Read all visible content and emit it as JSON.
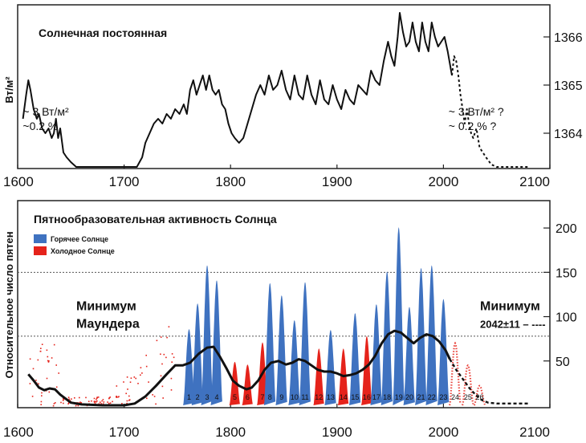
{
  "chart_data": [
    {
      "type": "line",
      "title": "Солнечная постоянная",
      "ylabel": "Вт/м²",
      "xlim": [
        1600,
        2100
      ],
      "ylim": [
        1363.3,
        1366.6
      ],
      "x_ticks": [
        "1600",
        "1700",
        "1800",
        "1900",
        "2000",
        "2100"
      ],
      "y_ticks": [
        "1364",
        "1365",
        "1366"
      ],
      "annotations": [
        {
          "text": "~ 3 Вт/м²",
          "x": 1635,
          "y": 1364.45
        },
        {
          "text": "~0.2 %",
          "x": 1635,
          "y": 1364.15
        },
        {
          "text": "~ 3 Вт/м² ?",
          "x": 2035,
          "y": 1364.45
        },
        {
          "text": "~ 0.2 % ?",
          "x": 2035,
          "y": 1364.15
        }
      ],
      "series": [
        {
          "style": "solid",
          "points": [
            [
              1605,
              1364.3
            ],
            [
              1608,
              1364.8
            ],
            [
              1610,
              1365.1
            ],
            [
              1612,
              1364.9
            ],
            [
              1615,
              1364.5
            ],
            [
              1618,
              1364.3
            ],
            [
              1620,
              1364.4
            ],
            [
              1623,
              1364.1
            ],
            [
              1626,
              1364.0
            ],
            [
              1629,
              1364.1
            ],
            [
              1632,
              1363.9
            ],
            [
              1634,
              1364.0
            ],
            [
              1636,
              1364.3
            ],
            [
              1638,
              1363.9
            ],
            [
              1640,
              1364.1
            ],
            [
              1643,
              1363.6
            ],
            [
              1646,
              1363.5
            ],
            [
              1650,
              1363.4
            ],
            [
              1655,
              1363.3
            ],
            [
              1665,
              1363.3
            ],
            [
              1680,
              1363.3
            ],
            [
              1700,
              1363.3
            ],
            [
              1712,
              1363.3
            ],
            [
              1717,
              1363.5
            ],
            [
              1720,
              1363.8
            ],
            [
              1724,
              1364.0
            ],
            [
              1728,
              1364.2
            ],
            [
              1732,
              1364.3
            ],
            [
              1736,
              1364.2
            ],
            [
              1740,
              1364.4
            ],
            [
              1744,
              1364.3
            ],
            [
              1748,
              1364.5
            ],
            [
              1752,
              1364.4
            ],
            [
              1756,
              1364.6
            ],
            [
              1759,
              1364.4
            ],
            [
              1762,
              1364.9
            ],
            [
              1765,
              1365.1
            ],
            [
              1768,
              1364.8
            ],
            [
              1771,
              1365.0
            ],
            [
              1774,
              1365.2
            ],
            [
              1777,
              1364.9
            ],
            [
              1780,
              1365.2
            ],
            [
              1783,
              1364.9
            ],
            [
              1786,
              1364.8
            ],
            [
              1789,
              1364.9
            ],
            [
              1792,
              1364.6
            ],
            [
              1795,
              1364.5
            ],
            [
              1798,
              1364.2
            ],
            [
              1801,
              1364.0
            ],
            [
              1804,
              1363.9
            ],
            [
              1808,
              1363.8
            ],
            [
              1812,
              1363.9
            ],
            [
              1816,
              1364.2
            ],
            [
              1820,
              1364.5
            ],
            [
              1824,
              1364.8
            ],
            [
              1828,
              1365.0
            ],
            [
              1832,
              1364.8
            ],
            [
              1836,
              1365.2
            ],
            [
              1840,
              1364.9
            ],
            [
              1844,
              1365.0
            ],
            [
              1848,
              1365.3
            ],
            [
              1852,
              1364.9
            ],
            [
              1856,
              1364.7
            ],
            [
              1860,
              1365.2
            ],
            [
              1864,
              1364.8
            ],
            [
              1868,
              1364.7
            ],
            [
              1872,
              1365.2
            ],
            [
              1876,
              1364.8
            ],
            [
              1880,
              1364.6
            ],
            [
              1884,
              1365.1
            ],
            [
              1888,
              1364.7
            ],
            [
              1892,
              1364.6
            ],
            [
              1896,
              1365.0
            ],
            [
              1900,
              1364.7
            ],
            [
              1904,
              1364.5
            ],
            [
              1908,
              1364.9
            ],
            [
              1912,
              1364.7
            ],
            [
              1916,
              1364.6
            ],
            [
              1920,
              1365.0
            ],
            [
              1924,
              1364.9
            ],
            [
              1928,
              1364.8
            ],
            [
              1932,
              1365.3
            ],
            [
              1936,
              1365.1
            ],
            [
              1940,
              1365.0
            ],
            [
              1944,
              1365.5
            ],
            [
              1948,
              1365.9
            ],
            [
              1951,
              1365.6
            ],
            [
              1954,
              1365.4
            ],
            [
              1957,
              1366.0
            ],
            [
              1959,
              1366.5
            ],
            [
              1962,
              1366.1
            ],
            [
              1965,
              1365.8
            ],
            [
              1968,
              1365.9
            ],
            [
              1971,
              1366.3
            ],
            [
              1974,
              1365.9
            ],
            [
              1977,
              1365.7
            ],
            [
              1980,
              1366.3
            ],
            [
              1983,
              1365.9
            ],
            [
              1986,
              1365.7
            ],
            [
              1989,
              1366.3
            ],
            [
              1992,
              1366.0
            ],
            [
              1995,
              1365.8
            ],
            [
              1998,
              1365.9
            ],
            [
              2001,
              1366.0
            ],
            [
              2004,
              1365.7
            ],
            [
              2008,
              1365.2
            ]
          ]
        },
        {
          "style": "dashed",
          "points": [
            [
              2008,
              1365.2
            ],
            [
              2010,
              1365.6
            ],
            [
              2012,
              1365.5
            ],
            [
              2014,
              1365.2
            ],
            [
              2016,
              1364.8
            ],
            [
              2018,
              1364.5
            ],
            [
              2020,
              1364.2
            ],
            [
              2022,
              1364.5
            ],
            [
              2024,
              1364.2
            ],
            [
              2026,
              1364.0
            ],
            [
              2028,
              1363.9
            ],
            [
              2031,
              1364.1
            ],
            [
              2034,
              1363.7
            ],
            [
              2037,
              1363.6
            ],
            [
              2040,
              1363.5
            ],
            [
              2045,
              1363.35
            ],
            [
              2050,
              1363.3
            ],
            [
              2060,
              1363.3
            ],
            [
              2080,
              1363.3
            ]
          ]
        }
      ]
    },
    {
      "type": "bar",
      "title": "Пятнообразовательная активность Солнца",
      "ylabel": "Относительное число пятен",
      "xlim": [
        1600,
        2100
      ],
      "ylim": [
        0,
        220
      ],
      "x_ticks": [
        "1600",
        "1700",
        "1800",
        "1900",
        "2000",
        "2100"
      ],
      "y_ticks": [
        "50",
        "100",
        "150",
        "200"
      ],
      "gridlines": [
        150,
        78
      ],
      "legend": {
        "position": "top-left",
        "entries": [
          {
            "name": "Горячее Солнце",
            "color": "#3f72c0"
          },
          {
            "name": "Холодное Солнце",
            "color": "#e5231b"
          }
        ]
      },
      "annotations": [
        {
          "text": "Минимум",
          "x": 1665,
          "y": 112,
          "color": "#e5231b"
        },
        {
          "text": "Маундера",
          "x": 1665,
          "y": 92,
          "color": "#e5231b"
        },
        {
          "text": "Минимум",
          "x": 2050,
          "y": 112,
          "color": "#e5231b"
        },
        {
          "text": "2042±11 – ----",
          "x": 2050,
          "y": 92,
          "color": "#e5231b"
        }
      ],
      "hot_color": "#3f72c0",
      "cold_color": "#e5231b",
      "cycles": [
        {
          "label": "1",
          "year": 1761,
          "peak": 86,
          "cold": false
        },
        {
          "label": "2",
          "year": 1769,
          "peak": 115,
          "cold": false
        },
        {
          "label": "3",
          "year": 1778,
          "peak": 158,
          "cold": false
        },
        {
          "label": "4",
          "year": 1787,
          "peak": 141,
          "cold": false
        },
        {
          "label": "5",
          "year": 1804,
          "peak": 49,
          "cold": true
        },
        {
          "label": "6",
          "year": 1816,
          "peak": 46,
          "cold": true
        },
        {
          "label": "7",
          "year": 1830,
          "peak": 71,
          "cold": true
        },
        {
          "label": "8",
          "year": 1837,
          "peak": 138,
          "cold": false
        },
        {
          "label": "9",
          "year": 1848,
          "peak": 124,
          "cold": false
        },
        {
          "label": "10",
          "year": 1860,
          "peak": 96,
          "cold": false
        },
        {
          "label": "11",
          "year": 1870,
          "peak": 139,
          "cold": false
        },
        {
          "label": "12",
          "year": 1883,
          "peak": 64,
          "cold": true
        },
        {
          "label": "13",
          "year": 1894,
          "peak": 85,
          "cold": false
        },
        {
          "label": "14",
          "year": 1906,
          "peak": 64,
          "cold": true
        },
        {
          "label": "15",
          "year": 1917,
          "peak": 104,
          "cold": false
        },
        {
          "label": "16",
          "year": 1928,
          "peak": 78,
          "cold": true
        },
        {
          "label": "17",
          "year": 1937,
          "peak": 114,
          "cold": false
        },
        {
          "label": "18",
          "year": 1947,
          "peak": 151,
          "cold": false
        },
        {
          "label": "19",
          "year": 1958,
          "peak": 201,
          "cold": false
        },
        {
          "label": "20",
          "year": 1968,
          "peak": 111,
          "cold": false
        },
        {
          "label": "21",
          "year": 1979,
          "peak": 155,
          "cold": false
        },
        {
          "label": "22",
          "year": 1989,
          "peak": 158,
          "cold": false
        },
        {
          "label": "23",
          "year": 2000,
          "peak": 120,
          "cold": false
        },
        {
          "label": "24",
          "year": 2011,
          "peak": 70,
          "cold": true
        },
        {
          "label": "25",
          "year": 2023,
          "peak": 45,
          "cold": true
        },
        {
          "label": "26",
          "year": 2034,
          "peak": 22,
          "cold": true
        }
      ],
      "smoothed_series": [
        [
          1610,
          35
        ],
        [
          1615,
          28
        ],
        [
          1620,
          20
        ],
        [
          1625,
          17
        ],
        [
          1630,
          19
        ],
        [
          1635,
          18
        ],
        [
          1640,
          12
        ],
        [
          1650,
          3
        ],
        [
          1660,
          1
        ],
        [
          1680,
          0
        ],
        [
          1700,
          0
        ],
        [
          1710,
          2
        ],
        [
          1720,
          10
        ],
        [
          1730,
          22
        ],
        [
          1740,
          35
        ],
        [
          1748,
          45
        ],
        [
          1755,
          45
        ],
        [
          1762,
          48
        ],
        [
          1770,
          58
        ],
        [
          1778,
          65
        ],
        [
          1784,
          66
        ],
        [
          1790,
          55
        ],
        [
          1796,
          42
        ],
        [
          1802,
          28
        ],
        [
          1808,
          22
        ],
        [
          1815,
          18
        ],
        [
          1820,
          20
        ],
        [
          1826,
          28
        ],
        [
          1832,
          40
        ],
        [
          1838,
          48
        ],
        [
          1845,
          50
        ],
        [
          1852,
          46
        ],
        [
          1858,
          48
        ],
        [
          1864,
          52
        ],
        [
          1870,
          50
        ],
        [
          1876,
          45
        ],
        [
          1882,
          40
        ],
        [
          1888,
          38
        ],
        [
          1894,
          38
        ],
        [
          1900,
          36
        ],
        [
          1906,
          33
        ],
        [
          1912,
          34
        ],
        [
          1918,
          36
        ],
        [
          1924,
          40
        ],
        [
          1930,
          46
        ],
        [
          1936,
          56
        ],
        [
          1942,
          70
        ],
        [
          1948,
          80
        ],
        [
          1954,
          84
        ],
        [
          1960,
          82
        ],
        [
          1966,
          76
        ],
        [
          1972,
          70
        ],
        [
          1978,
          76
        ],
        [
          1984,
          80
        ],
        [
          1990,
          78
        ],
        [
          1996,
          72
        ],
        [
          2002,
          62
        ],
        [
          2006,
          52
        ]
      ],
      "forecast_series": [
        [
          2006,
          52
        ],
        [
          2012,
          40
        ],
        [
          2018,
          30
        ],
        [
          2024,
          20
        ],
        [
          2030,
          12
        ],
        [
          2036,
          6
        ],
        [
          2042,
          3
        ],
        [
          2050,
          2
        ],
        [
          2060,
          2
        ],
        [
          2080,
          2
        ]
      ]
    }
  ]
}
